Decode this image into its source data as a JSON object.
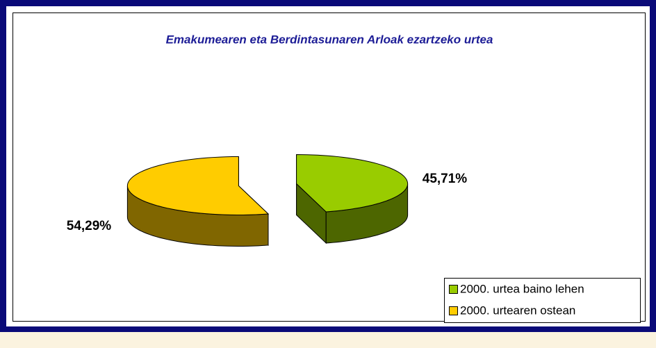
{
  "chart_data": {
    "type": "pie",
    "title": "Emakumearen eta Berdintasunaren Arloak ezartzeko urtea",
    "categories": [
      "2000. urtea baino lehen",
      "2000. urtearen ostean"
    ],
    "values": [
      45.71,
      54.29
    ],
    "value_labels": [
      "45,71%",
      "54,29%"
    ],
    "colors": [
      "#99cc00",
      "#ffcc00"
    ],
    "legend": "bottom-right"
  }
}
